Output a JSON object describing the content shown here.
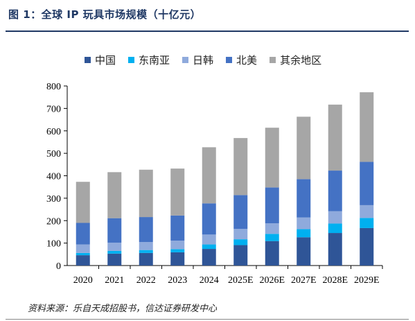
{
  "header": {
    "title": "图 1：全球 IP 玩具市场规模（十亿元）"
  },
  "source": {
    "text": "资料来源：乐自天成招股书，信达证券研发中心"
  },
  "chart_data": {
    "type": "bar",
    "stacked": true,
    "title": "图 1：全球 IP 玩具市场规模（十亿元）",
    "categories": [
      "2020",
      "2021",
      "2022",
      "2023",
      "2024",
      "2025E",
      "2026E",
      "2027E",
      "2028E",
      "2029E"
    ],
    "series": [
      {
        "name": "中国",
        "color": "#2f5597",
        "values": [
          46,
          53,
          56,
          59,
          74,
          91,
          109,
          126,
          145,
          167
        ]
      },
      {
        "name": "东南亚",
        "color": "#00b0f0",
        "values": [
          10,
          12,
          13,
          14,
          20,
          26,
          32,
          36,
          42,
          45
        ]
      },
      {
        "name": "日韩",
        "color": "#8faadc",
        "values": [
          38,
          37,
          36,
          38,
          44,
          46,
          47,
          52,
          55,
          57
        ]
      },
      {
        "name": "北美",
        "color": "#4472c4",
        "values": [
          96,
          109,
          111,
          112,
          139,
          151,
          160,
          171,
          181,
          193
        ]
      },
      {
        "name": "其余地区",
        "color": "#a6a6a6",
        "values": [
          183,
          205,
          211,
          209,
          250,
          254,
          266,
          278,
          294,
          310
        ]
      }
    ],
    "ylim": [
      0,
      800
    ],
    "yticks": [
      0,
      100,
      200,
      300,
      400,
      500,
      600,
      700,
      800
    ],
    "grid": false,
    "legend": "top"
  }
}
